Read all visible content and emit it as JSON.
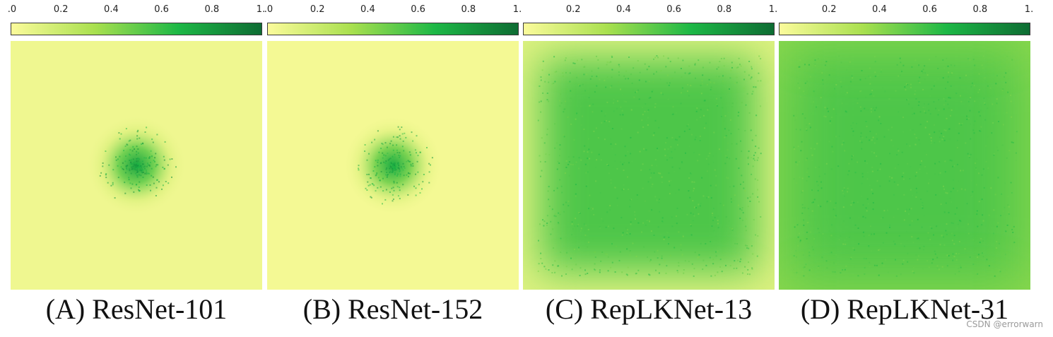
{
  "figure": {
    "watermark": "CSDN @errorwarn"
  },
  "chart_data": [
    {
      "type": "heatmap",
      "title": "(A) ResNet-101",
      "colorbar": {
        "ticks": [
          ".0",
          "0.2",
          "0.4",
          "0.6",
          "0.8",
          "1."
        ],
        "range": [
          0,
          1
        ],
        "colors": [
          "#fbfb9b",
          "#a9e04f",
          "#1db846",
          "#0e6c33"
        ]
      },
      "pattern": "small centered blob",
      "center_value": 0.75,
      "background_value": 0.05,
      "spread_fraction": 0.2
    },
    {
      "type": "heatmap",
      "title": "(B) ResNet-152",
      "colorbar": {
        "ticks": [
          ".0",
          "0.2",
          "0.4",
          "0.6",
          "0.8",
          "1."
        ],
        "range": [
          0,
          1
        ],
        "colors": [
          "#fbfb9b",
          "#a9e04f",
          "#1db846",
          "#0e6c33"
        ]
      },
      "pattern": "small centered blob",
      "center_value": 0.72,
      "background_value": 0.03,
      "spread_fraction": 0.2
    },
    {
      "type": "heatmap",
      "title": "(C) RepLKNet-13",
      "colorbar": {
        "ticks": [
          "0.2",
          "0.4",
          "0.6",
          "0.8",
          "1."
        ],
        "range": [
          0,
          1
        ],
        "colors": [
          "#fbfb9b",
          "#a9e04f",
          "#1db846",
          "#0e6c33"
        ]
      },
      "pattern": "large square region",
      "center_value": 0.55,
      "background_value": 0.12,
      "spread_fraction": 0.85
    },
    {
      "type": "heatmap",
      "title": "(D) RepLKNet-31",
      "colorbar": {
        "ticks": [
          "0.2",
          "0.4",
          "0.6",
          "0.8",
          "1."
        ],
        "range": [
          0,
          1
        ],
        "colors": [
          "#fbfb9b",
          "#a9e04f",
          "#1db846",
          "#0e6c33"
        ]
      },
      "pattern": "fills whole area",
      "center_value": 0.55,
      "background_value": 0.4,
      "spread_fraction": 1.0
    }
  ]
}
